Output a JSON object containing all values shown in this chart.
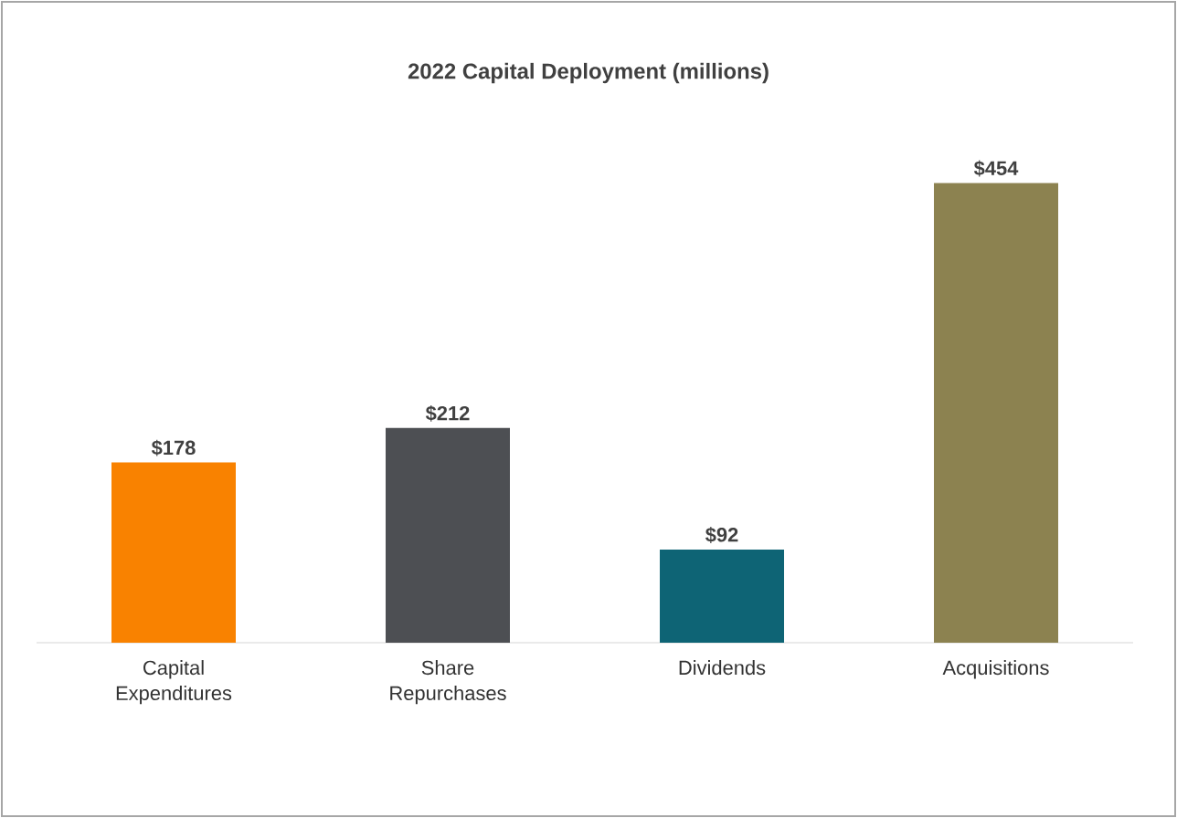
{
  "chart_data": {
    "type": "bar",
    "title": "2022 Capital Deployment (millions)",
    "categories": [
      "Capital Expenditures",
      "Share Repurchases",
      "Dividends",
      "Acquisitions"
    ],
    "values": [
      178,
      212,
      92,
      454
    ],
    "colors": [
      "#f98200",
      "#4d4f53",
      "#0e6475",
      "#8c8250"
    ],
    "value_labels": [
      "$178",
      "$212",
      "$92",
      "$454"
    ]
  }
}
